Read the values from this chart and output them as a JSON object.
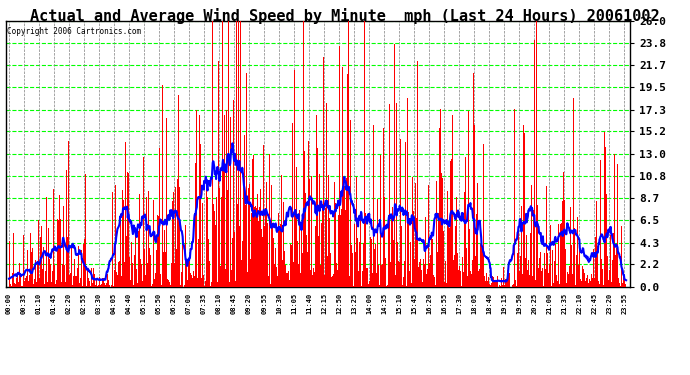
{
  "title": "Actual and Average Wind Speed by Minute  mph (Last 24 Hours) 20061002",
  "copyright": "Copyright 2006 Cartronics.com",
  "yticks": [
    0.0,
    2.2,
    4.3,
    6.5,
    8.7,
    10.8,
    13.0,
    15.2,
    17.3,
    19.5,
    21.7,
    23.8,
    26.0
  ],
  "ymax": 26.0,
  "ymin": 0.0,
  "background_color": "#ffffff",
  "plot_bg_color": "#ffffff",
  "grid_color": "#00ff00",
  "grid_color_vert": "#808080",
  "bar_color": "#ff0000",
  "line_color": "#0000ff",
  "title_color": "#000000",
  "title_fontsize": 11,
  "copyright_color": "#000000",
  "num_minutes": 1440,
  "tick_interval": 35,
  "avg_window": 30
}
